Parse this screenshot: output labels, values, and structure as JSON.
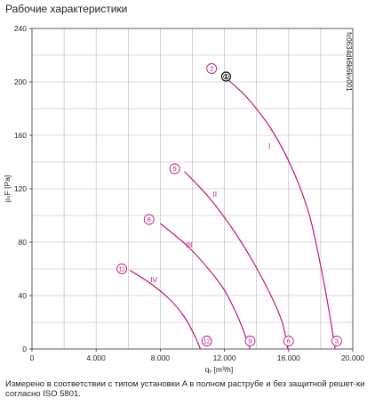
{
  "page": {
    "title": "Рабочие характеристики",
    "note": "Измерено в соответствии с типом установки A в полном раструбе и без защитной решет-ки согласно ISO 5801.",
    "code": "fc0634dk6k6kv001"
  },
  "chart_data": {
    "type": "line",
    "title": "Рабочие характеристики",
    "xlabel": "qᵥ [m³/h]",
    "ylabel": "pₛF [Pa]",
    "xlim": [
      0,
      20000
    ],
    "ylim": [
      0,
      240
    ],
    "x_ticks": [
      0,
      4000,
      8000,
      12000,
      16000,
      20000
    ],
    "x_tick_labels": [
      "0",
      "4.000",
      "8.000",
      "12.000",
      "16.000",
      "20.000"
    ],
    "y_ticks": [
      0,
      40,
      80,
      120,
      160,
      200,
      240
    ],
    "y_tick_labels": [
      "0",
      "40",
      "80",
      "120",
      "160",
      "200",
      "240"
    ],
    "grid": true,
    "colors": {
      "curve": "#c0177f",
      "grid": "#b8b8b8",
      "axis": "#333333"
    },
    "series": [
      {
        "name": "I",
        "points": [
          [
            12100,
            203
          ],
          [
            13500,
            187
          ],
          [
            15000,
            163
          ],
          [
            16300,
            133
          ],
          [
            17300,
            100
          ],
          [
            18000,
            62
          ],
          [
            18500,
            30
          ],
          [
            18900,
            0
          ]
        ]
      },
      {
        "name": "II",
        "points": [
          [
            9500,
            133
          ],
          [
            11000,
            114
          ],
          [
            12500,
            90
          ],
          [
            13800,
            65
          ],
          [
            14900,
            40
          ],
          [
            15600,
            20
          ],
          [
            15950,
            0
          ]
        ]
      },
      {
        "name": "III",
        "points": [
          [
            8000,
            94
          ],
          [
            9700,
            77
          ],
          [
            11000,
            60
          ],
          [
            12000,
            44
          ],
          [
            12800,
            25
          ],
          [
            13300,
            10
          ],
          [
            13600,
            0
          ]
        ]
      },
      {
        "name": "IV",
        "points": [
          [
            6100,
            59
          ],
          [
            7400,
            49
          ],
          [
            8600,
            37
          ],
          [
            9500,
            24
          ],
          [
            10100,
            11
          ],
          [
            10500,
            0
          ]
        ]
      }
    ],
    "series_labels": [
      {
        "text": "I",
        "x": 14800,
        "y": 150
      },
      {
        "text": "II",
        "x": 11400,
        "y": 114
      },
      {
        "text": "III",
        "x": 9800,
        "y": 76
      },
      {
        "text": "IV",
        "x": 7600,
        "y": 50
      }
    ],
    "operating_points": [
      {
        "label": "2",
        "x": 11200,
        "y": 210
      },
      {
        "label": "5",
        "x": 8900,
        "y": 135
      },
      {
        "label": "8",
        "x": 7300,
        "y": 97
      },
      {
        "label": "11",
        "x": 5600,
        "y": 60
      },
      {
        "label": "3",
        "x": 19000,
        "y": 6
      },
      {
        "label": "6",
        "x": 16000,
        "y": 6
      },
      {
        "label": "9",
        "x": 13600,
        "y": 6
      },
      {
        "label": "12",
        "x": 10900,
        "y": 6
      }
    ],
    "nominal_point": {
      "label": "①",
      "x": 12100,
      "y": 204
    }
  }
}
